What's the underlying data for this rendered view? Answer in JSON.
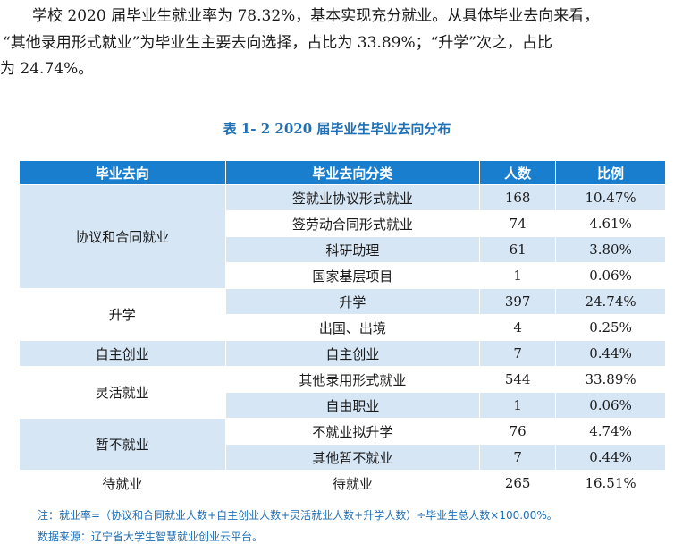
{
  "paragraph": {
    "line1": "学校 2020 届毕业生就业率为 78.32%，基本实现充分就业。从具体毕业去向来看，",
    "line2": "“其他录用形式就业”为毕业生主要去向选择，占比为 33.89%；“升学”次之，占比",
    "line3": "为 24.74%。"
  },
  "caption": "表 1- 2    2020 届毕业生毕业去向分布",
  "table": {
    "headers": [
      "毕业去向",
      "毕业去向分类",
      "人数",
      "比例"
    ],
    "groups": [
      {
        "name": "协议和合同就业",
        "rows": [
          {
            "category": "签就业协议形式就业",
            "count": "168",
            "ratio": "10.47%"
          },
          {
            "category": "签劳动合同形式就业",
            "count": "74",
            "ratio": "4.61%"
          },
          {
            "category": "科研助理",
            "count": "61",
            "ratio": "3.80%"
          },
          {
            "category": "国家基层项目",
            "count": "1",
            "ratio": "0.06%"
          }
        ]
      },
      {
        "name": "升学",
        "rows": [
          {
            "category": "升学",
            "count": "397",
            "ratio": "24.74%"
          },
          {
            "category": "出国、出境",
            "count": "4",
            "ratio": "0.25%"
          }
        ]
      },
      {
        "name": "自主创业",
        "rows": [
          {
            "category": "自主创业",
            "count": "7",
            "ratio": "0.44%"
          }
        ]
      },
      {
        "name": "灵活就业",
        "rows": [
          {
            "category": "其他录用形式就业",
            "count": "544",
            "ratio": "33.89%"
          },
          {
            "category": "自由职业",
            "count": "1",
            "ratio": "0.06%"
          }
        ]
      },
      {
        "name": "暂不就业",
        "rows": [
          {
            "category": "不就业拟升学",
            "count": "76",
            "ratio": "4.74%"
          },
          {
            "category": "其他暂不就业",
            "count": "7",
            "ratio": "0.44%"
          }
        ]
      },
      {
        "name": "待就业",
        "rows": [
          {
            "category": "待就业",
            "count": "265",
            "ratio": "16.51%"
          }
        ]
      }
    ]
  },
  "notes": {
    "formula": "注：就业率=（协议和合同就业人数+自主创业人数+灵活就业人数+升学人数）÷毕业生总人数×100.00%。",
    "source": "数据来源：辽宁省大学生智慧就业创业云平台。"
  },
  "colors": {
    "header": "#1a7ecf",
    "band": "#d6e6f5",
    "caption": "#1f6fb5"
  }
}
